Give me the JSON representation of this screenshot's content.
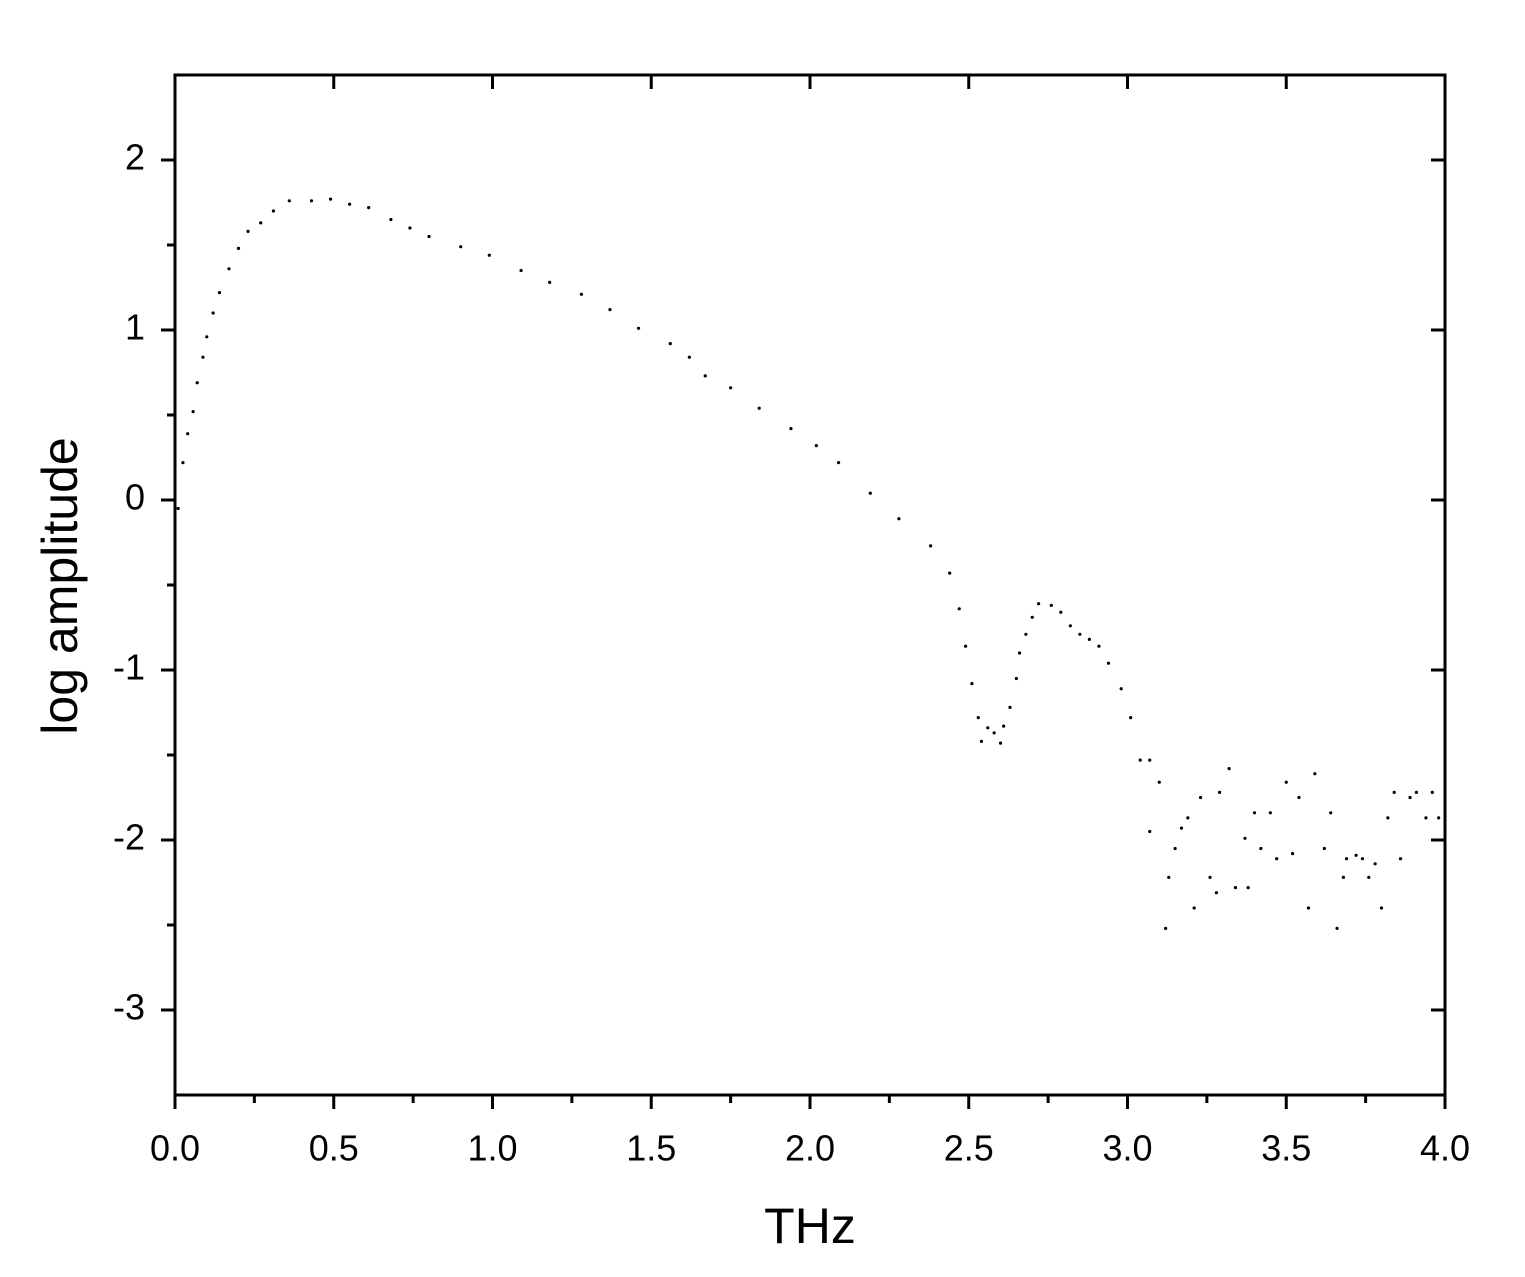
{
  "chart_data": {
    "type": "scatter",
    "x_label": "THz",
    "y_label": "log amplitude",
    "xlim": [
      0,
      4
    ],
    "ylim": [
      -3.5,
      2.5
    ],
    "xticks": [
      {
        "value": 0,
        "label": "0.0"
      },
      {
        "value": 0.5,
        "label": "0.5"
      },
      {
        "value": 1,
        "label": "1.0"
      },
      {
        "value": 1.5,
        "label": "1.5"
      },
      {
        "value": 2,
        "label": "2.0"
      },
      {
        "value": 2.5,
        "label": "2.5"
      },
      {
        "value": 3,
        "label": "3.0"
      },
      {
        "value": 3.5,
        "label": "3.5"
      },
      {
        "value": 4,
        "label": "4.0"
      }
    ],
    "yticks": [
      -3,
      -2,
      -1,
      0,
      1,
      2
    ],
    "color": "#000000",
    "x": [
      0.01,
      0.025,
      0.04,
      0.057,
      0.07,
      0.088,
      0.1,
      0.12,
      0.14,
      0.17,
      0.2,
      0.23,
      0.27,
      0.31,
      0.36,
      0.43,
      0.49,
      0.55,
      0.61,
      0.68,
      0.74,
      0.8,
      0.9,
      0.99,
      1.09,
      1.18,
      1.28,
      1.37,
      1.46,
      1.56,
      1.62,
      1.67,
      1.75,
      1.84,
      1.94,
      2.02,
      2.09,
      2.19,
      2.28,
      2.38,
      2.44,
      2.47,
      2.49,
      2.51,
      2.53,
      2.54,
      2.56,
      2.58,
      2.6,
      2.61,
      2.63,
      2.65,
      2.66,
      2.68,
      2.7,
      2.72,
      2.76,
      2.79,
      2.82,
      2.85,
      2.88,
      2.91,
      2.94,
      2.98,
      3.01,
      3.04,
      3.07,
      3.07,
      3.1,
      3.12,
      3.13,
      3.15,
      3.17,
      3.19,
      3.21,
      3.23,
      3.26,
      3.28,
      3.29,
      3.32,
      3.34,
      3.37,
      3.38,
      3.4,
      3.42,
      3.45,
      3.47,
      3.5,
      3.52,
      3.54,
      3.57,
      3.59,
      3.62,
      3.64,
      3.66,
      3.68,
      3.69,
      3.72,
      3.74,
      3.76,
      3.78,
      3.8,
      3.82,
      3.84,
      3.86,
      3.89,
      3.91,
      3.94,
      3.96,
      3.98
    ],
    "values": [
      -0.05,
      0.22,
      0.39,
      0.52,
      0.69,
      0.84,
      0.96,
      1.1,
      1.22,
      1.36,
      1.48,
      1.58,
      1.63,
      1.7,
      1.76,
      1.76,
      1.77,
      1.74,
      1.72,
      1.65,
      1.6,
      1.55,
      1.49,
      1.44,
      1.35,
      1.28,
      1.21,
      1.12,
      1.01,
      0.92,
      0.84,
      0.73,
      0.66,
      0.54,
      0.42,
      0.32,
      0.22,
      0.04,
      -0.11,
      -0.27,
      -0.43,
      -0.64,
      -0.86,
      -1.08,
      -1.28,
      -1.42,
      -1.34,
      -1.37,
      -1.43,
      -1.33,
      -1.22,
      -1.05,
      -0.9,
      -0.79,
      -0.69,
      -0.61,
      -0.62,
      -0.66,
      -0.74,
      -0.79,
      -0.82,
      -0.86,
      -0.96,
      -1.11,
      -1.28,
      -1.53,
      -1.53,
      -1.95,
      -1.66,
      -2.52,
      -2.22,
      -2.05,
      -1.93,
      -1.87,
      -2.4,
      -1.75,
      -2.22,
      -2.31,
      -1.72,
      -1.58,
      -2.28,
      -1.99,
      -2.28,
      -1.84,
      -2.05,
      -1.84,
      -2.11,
      -1.66,
      -2.08,
      -1.75,
      -2.4,
      -1.61,
      -2.05,
      -1.84,
      -2.52,
      -2.22,
      -2.11,
      -2.09,
      -2.11,
      -2.22,
      -2.14,
      -2.4,
      -1.87,
      -1.72,
      -2.11,
      -1.75,
      -1.72,
      -1.87,
      -1.72,
      -1.87
    ]
  }
}
